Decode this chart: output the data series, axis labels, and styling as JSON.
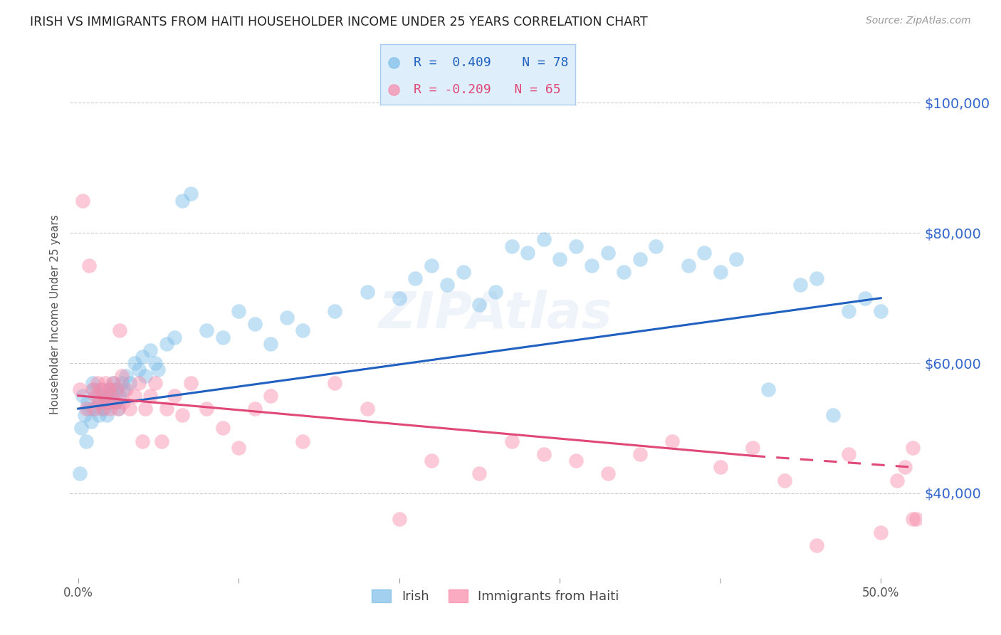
{
  "title": "IRISH VS IMMIGRANTS FROM HAITI HOUSEHOLDER INCOME UNDER 25 YEARS CORRELATION CHART",
  "source": "Source: ZipAtlas.com",
  "ylabel": "Householder Income Under 25 years",
  "xlabel_ticks": [
    "0.0%",
    "",
    "",
    "",
    "",
    "50.0%"
  ],
  "xlabel_vals": [
    0.0,
    0.1,
    0.2,
    0.3,
    0.4,
    0.5
  ],
  "ytick_labels": [
    "$40,000",
    "$60,000",
    "$80,000",
    "$100,000"
  ],
  "ytick_vals": [
    40000,
    60000,
    80000,
    100000
  ],
  "xlim": [
    -0.005,
    0.525
  ],
  "ylim": [
    27000,
    108000
  ],
  "irish_R": 0.409,
  "irish_N": 78,
  "haiti_R": -0.209,
  "haiti_N": 65,
  "irish_color": "#7bbde8",
  "haiti_color": "#f888a8",
  "irish_line_color": "#2060c0",
  "haiti_line_color": "#e04878",
  "watermark": "ZIPAtlas",
  "background_color": "#ffffff",
  "grid_color": "#cccccc",
  "right_label_color": "#3366cc",
  "title_color": "#222222",
  "irish_line_y0": 53000,
  "irish_line_y1": 70000,
  "haiti_line_y0": 55000,
  "haiti_line_y1": 44000,
  "irish_x": [
    0.001,
    0.002,
    0.003,
    0.004,
    0.005,
    0.006,
    0.007,
    0.008,
    0.009,
    0.01,
    0.011,
    0.012,
    0.013,
    0.014,
    0.015,
    0.016,
    0.017,
    0.018,
    0.019,
    0.02,
    0.021,
    0.022,
    0.023,
    0.024,
    0.025,
    0.026,
    0.027,
    0.028,
    0.03,
    0.032,
    0.035,
    0.038,
    0.04,
    0.042,
    0.045,
    0.048,
    0.05,
    0.055,
    0.06,
    0.065,
    0.07,
    0.08,
    0.09,
    0.1,
    0.11,
    0.12,
    0.13,
    0.14,
    0.16,
    0.18,
    0.2,
    0.21,
    0.22,
    0.23,
    0.24,
    0.25,
    0.26,
    0.27,
    0.28,
    0.29,
    0.3,
    0.31,
    0.32,
    0.33,
    0.34,
    0.35,
    0.36,
    0.38,
    0.39,
    0.4,
    0.41,
    0.43,
    0.45,
    0.46,
    0.47,
    0.48,
    0.49,
    0.5
  ],
  "irish_y": [
    43000,
    50000,
    55000,
    52000,
    48000,
    54000,
    53000,
    51000,
    57000,
    56000,
    53000,
    55000,
    52000,
    54000,
    56000,
    53000,
    55000,
    52000,
    54000,
    56000,
    55000,
    57000,
    54000,
    56000,
    53000,
    55000,
    57000,
    56000,
    58000,
    57000,
    60000,
    59000,
    61000,
    58000,
    62000,
    60000,
    59000,
    63000,
    64000,
    85000,
    86000,
    65000,
    64000,
    68000,
    66000,
    63000,
    67000,
    65000,
    68000,
    71000,
    70000,
    73000,
    75000,
    72000,
    74000,
    69000,
    71000,
    78000,
    77000,
    79000,
    76000,
    78000,
    75000,
    77000,
    74000,
    76000,
    78000,
    75000,
    77000,
    74000,
    76000,
    56000,
    72000,
    73000,
    52000,
    68000,
    70000,
    68000
  ],
  "haiti_x": [
    0.001,
    0.003,
    0.005,
    0.007,
    0.009,
    0.01,
    0.011,
    0.012,
    0.013,
    0.014,
    0.015,
    0.016,
    0.017,
    0.018,
    0.019,
    0.02,
    0.021,
    0.022,
    0.023,
    0.024,
    0.025,
    0.026,
    0.027,
    0.028,
    0.03,
    0.032,
    0.035,
    0.038,
    0.04,
    0.042,
    0.045,
    0.048,
    0.052,
    0.055,
    0.06,
    0.065,
    0.07,
    0.08,
    0.09,
    0.1,
    0.11,
    0.12,
    0.14,
    0.16,
    0.18,
    0.2,
    0.22,
    0.25,
    0.27,
    0.29,
    0.31,
    0.33,
    0.35,
    0.37,
    0.4,
    0.42,
    0.44,
    0.46,
    0.48,
    0.5,
    0.51,
    0.515,
    0.52,
    0.52,
    0.522
  ],
  "haiti_y": [
    56000,
    85000,
    53000,
    75000,
    56000,
    53000,
    55000,
    57000,
    54000,
    56000,
    53000,
    55000,
    57000,
    54000,
    56000,
    53000,
    55000,
    57000,
    54000,
    56000,
    53000,
    65000,
    58000,
    54000,
    56000,
    53000,
    55000,
    57000,
    48000,
    53000,
    55000,
    57000,
    48000,
    53000,
    55000,
    52000,
    57000,
    53000,
    50000,
    47000,
    53000,
    55000,
    48000,
    57000,
    53000,
    36000,
    45000,
    43000,
    48000,
    46000,
    45000,
    43000,
    46000,
    48000,
    44000,
    47000,
    42000,
    32000,
    46000,
    34000,
    42000,
    44000,
    36000,
    47000,
    36000
  ]
}
